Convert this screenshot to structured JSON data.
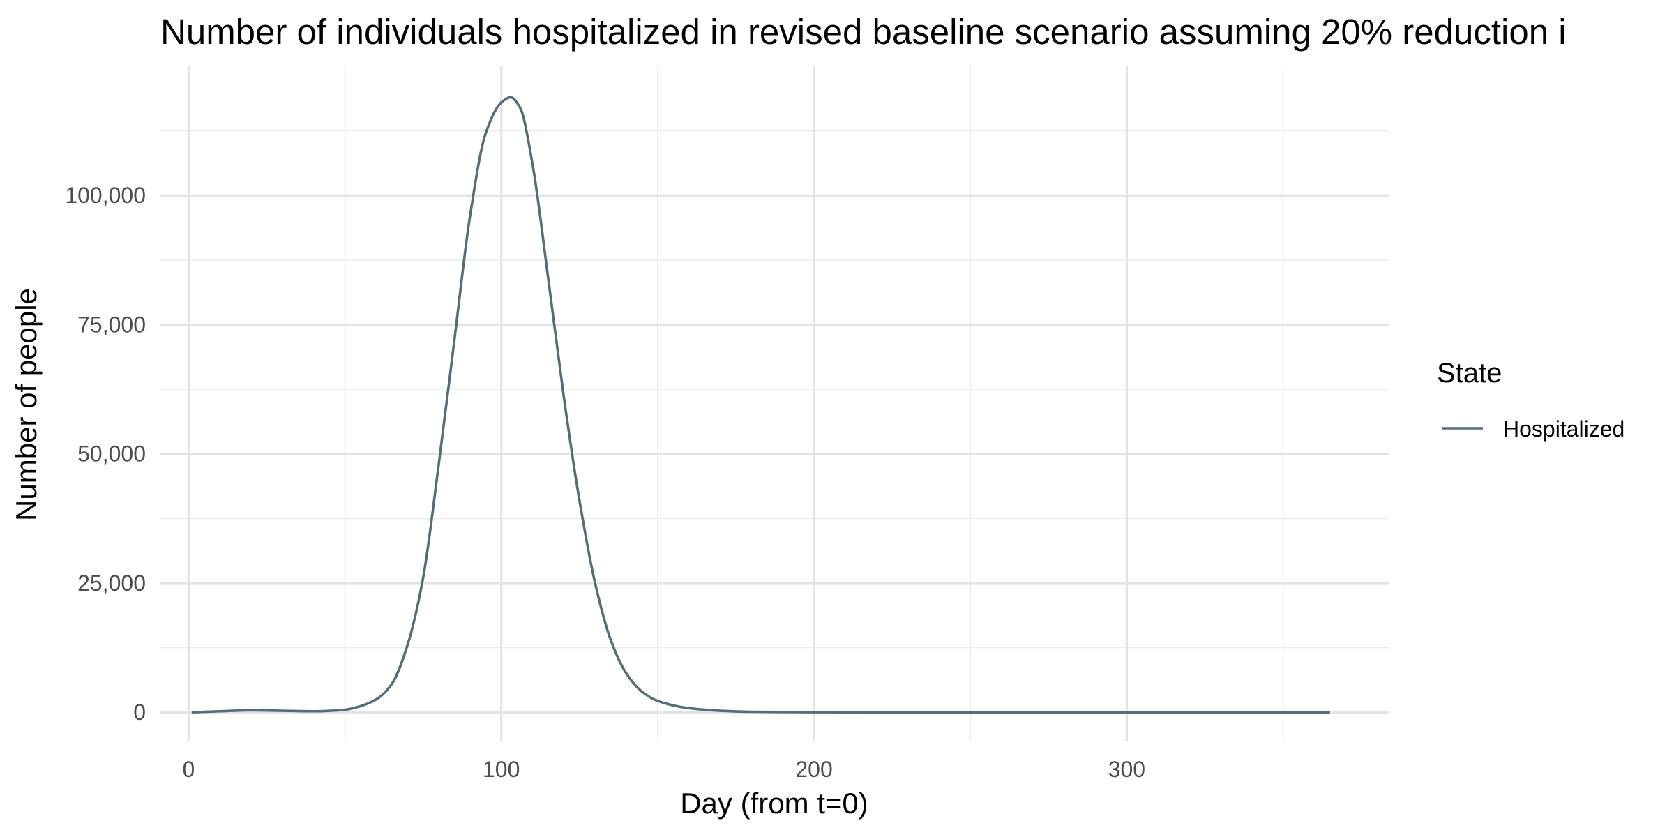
{
  "chart_data": {
    "type": "line",
    "title": "Number of individuals hospitalized in revised baseline scenario assuming 20% reduction i",
    "xlabel": "Day (from t=0)",
    "ylabel": "Number of people",
    "xlim": [
      -9,
      384
    ],
    "ylim": [
      -5500,
      125000
    ],
    "x_ticks": [
      0,
      100,
      200,
      300
    ],
    "x_tick_labels": [
      "0",
      "100",
      "200",
      "300"
    ],
    "x_minor_ticks": [
      50,
      150,
      250,
      350
    ],
    "y_ticks": [
      0,
      25000,
      50000,
      75000,
      100000
    ],
    "y_tick_labels": [
      "0",
      "25,000",
      "50,000",
      "75,000",
      "100,000"
    ],
    "y_minor_ticks": [
      12500,
      37500,
      62500,
      87500,
      112500
    ],
    "grid": true,
    "legend": {
      "title": "State",
      "position": "right"
    },
    "series": [
      {
        "name": "Hospitalized",
        "color": "#546e78",
        "x": [
          1,
          10,
          20,
          30,
          40,
          50,
          55,
          60,
          65,
          70,
          75,
          80,
          85,
          90,
          95,
          100,
          103,
          106,
          110,
          115,
          120,
          125,
          130,
          135,
          140,
          145,
          150,
          160,
          170,
          180,
          190,
          200,
          225,
          250,
          275,
          300,
          325,
          350,
          365
        ],
        "y": [
          0,
          200,
          400,
          300,
          200,
          500,
          1200,
          2500,
          5500,
          13000,
          26000,
          48000,
          72000,
          96000,
          112000,
          118000,
          119000,
          117000,
          106000,
          84000,
          61000,
          41000,
          25000,
          14000,
          7500,
          4000,
          2200,
          800,
          300,
          100,
          50,
          20,
          0,
          0,
          0,
          0,
          0,
          0,
          0
        ]
      }
    ]
  }
}
